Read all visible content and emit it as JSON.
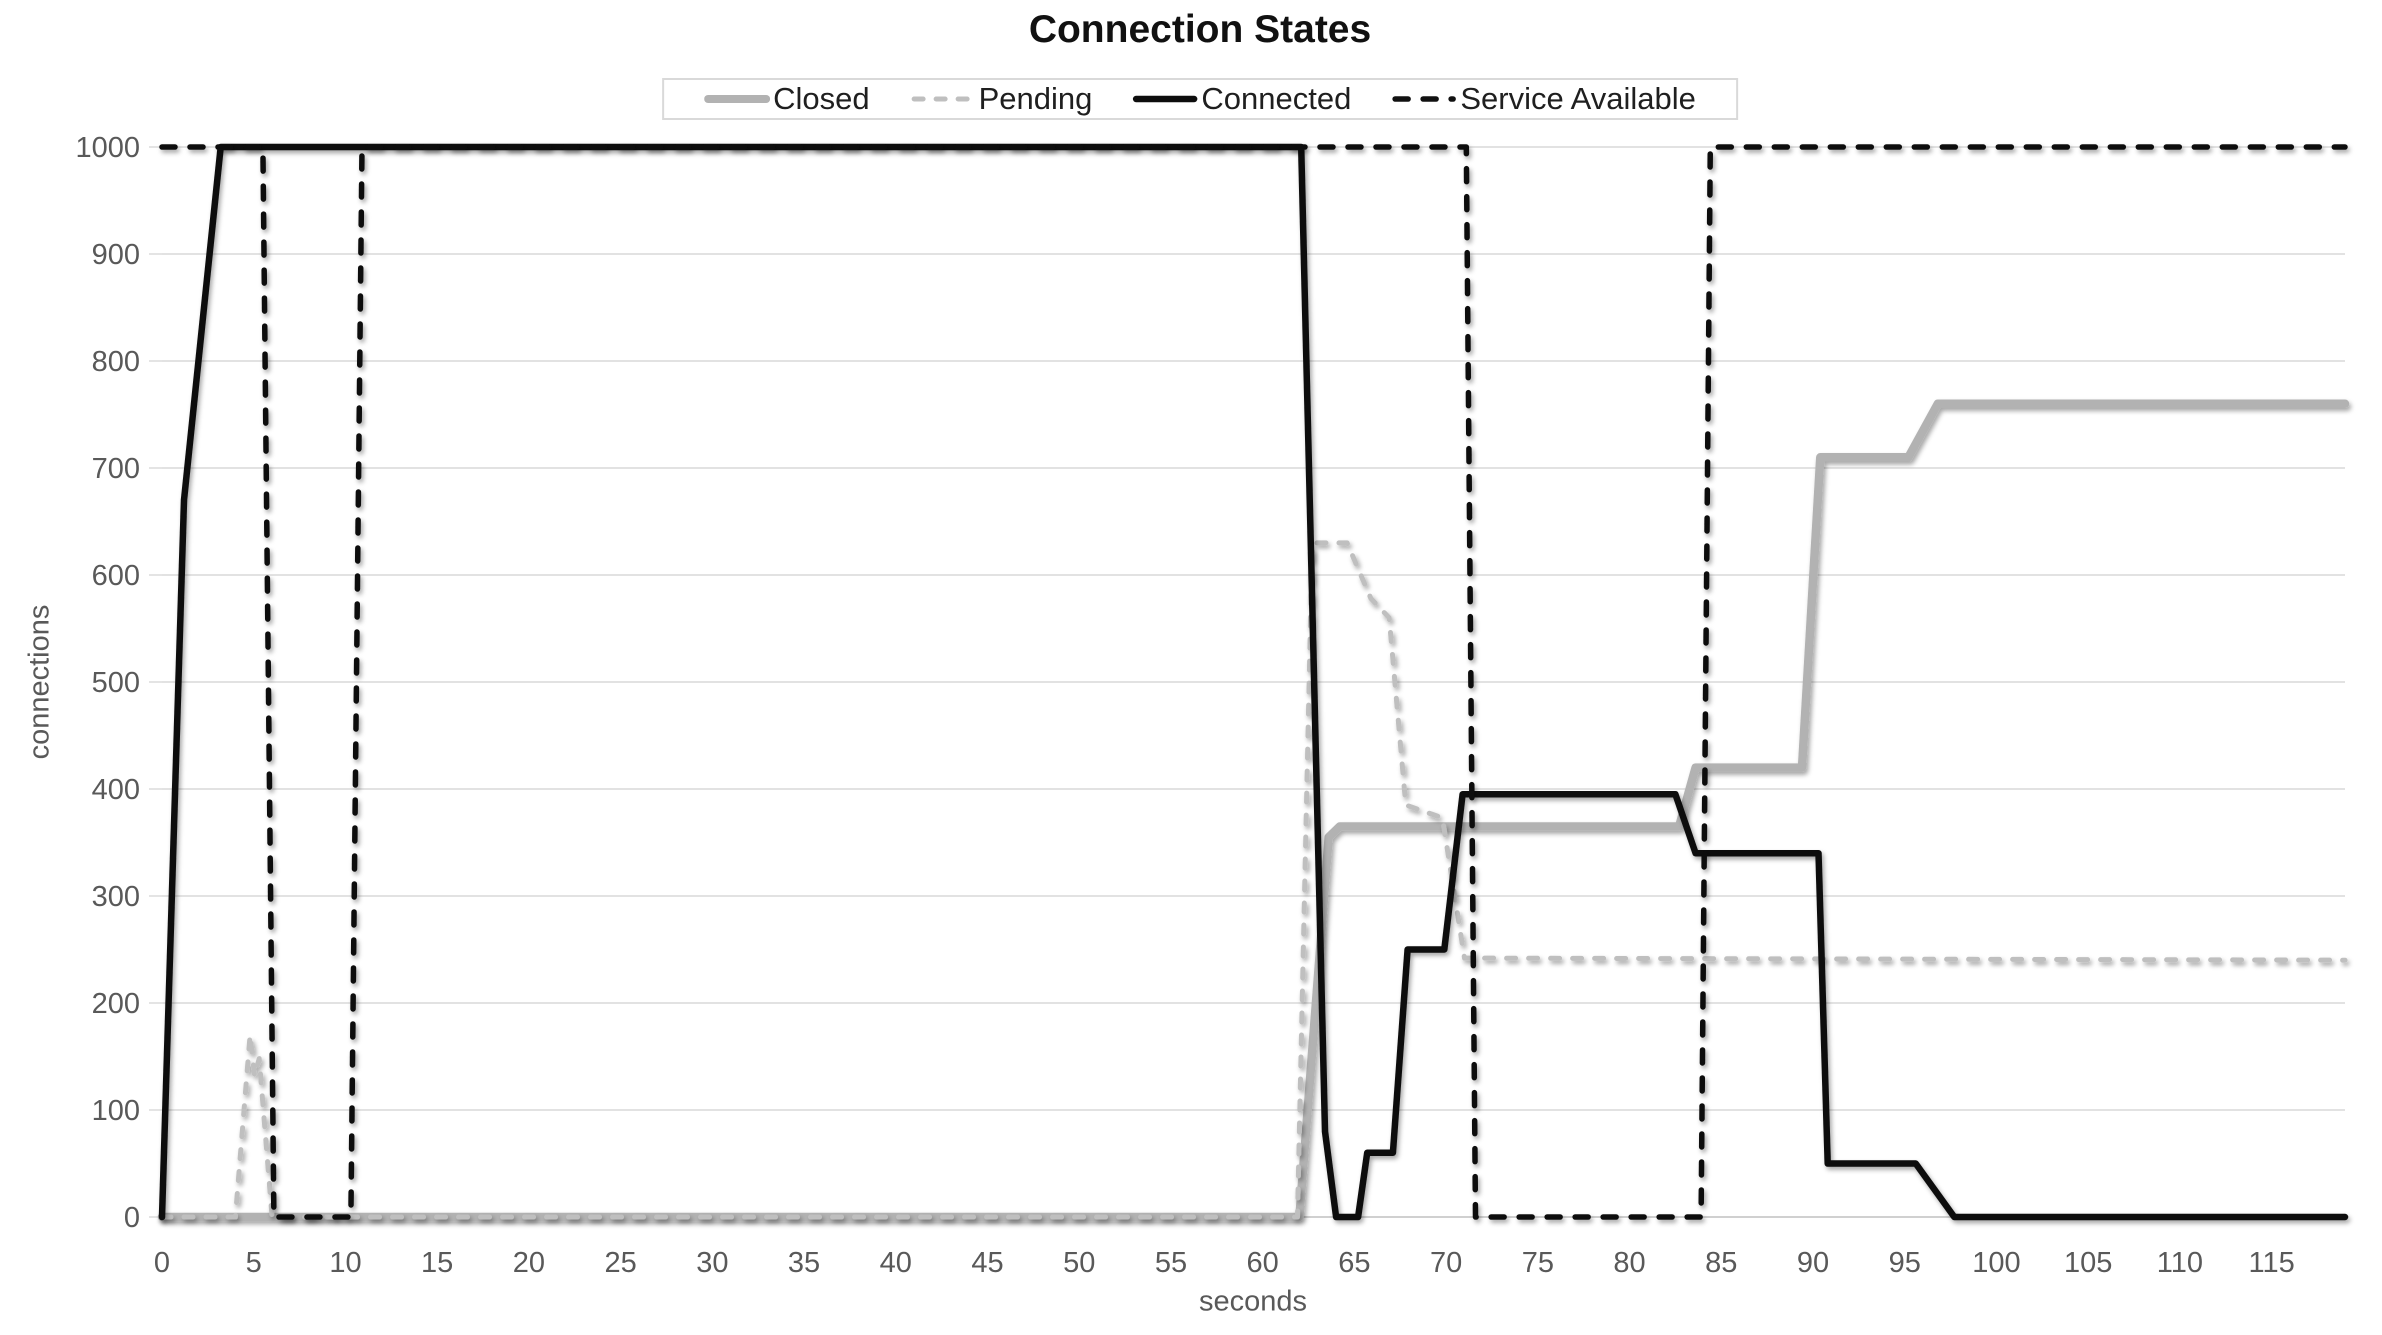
{
  "chart_data": {
    "type": "line",
    "title": "Connection States",
    "xlabel": "seconds",
    "ylabel": "connections",
    "xlim": [
      0,
      119
    ],
    "ylim": [
      0,
      1000
    ],
    "x_ticks": [
      0,
      5,
      10,
      15,
      20,
      25,
      30,
      35,
      40,
      45,
      50,
      55,
      60,
      65,
      70,
      75,
      80,
      85,
      90,
      95,
      100,
      105,
      110,
      115
    ],
    "y_ticks": [
      0,
      100,
      200,
      300,
      400,
      500,
      600,
      700,
      800,
      900,
      1000
    ],
    "grid": "horizontal",
    "legend_position": "top-center",
    "colors": {
      "grid": "#d9d9d9",
      "axis": "#c6c6c6",
      "tick_text": "#595959",
      "title_text": "#111111"
    },
    "series": [
      {
        "name": "Closed",
        "color": "#b2b2b2",
        "style": "solid",
        "width": 8.5,
        "dash": null,
        "points": [
          [
            0,
            0
          ],
          [
            62,
            0
          ],
          [
            63.6,
            355
          ],
          [
            64.2,
            365
          ],
          [
            82.7,
            365
          ],
          [
            83.6,
            420
          ],
          [
            89.4,
            420
          ],
          [
            90.4,
            710
          ],
          [
            95.2,
            710
          ],
          [
            96.8,
            760
          ],
          [
            119,
            760
          ]
        ]
      },
      {
        "name": "Pending",
        "color": "#bfbfbf",
        "style": "dashed",
        "width": 5,
        "dash": [
          9,
          13
        ],
        "points": [
          [
            0,
            0
          ],
          [
            4,
            0
          ],
          [
            4.8,
            170
          ],
          [
            5.05,
            132
          ],
          [
            5.3,
            148
          ],
          [
            6,
            0
          ],
          [
            61.9,
            0
          ],
          [
            62.7,
            630
          ],
          [
            64.6,
            630
          ],
          [
            65.9,
            578
          ],
          [
            66.9,
            560
          ],
          [
            67.8,
            385
          ],
          [
            69.8,
            373
          ],
          [
            71,
            242
          ],
          [
            119,
            240
          ]
        ]
      },
      {
        "name": "Connected",
        "color": "#0d0d0d",
        "style": "solid",
        "width": 6.5,
        "dash": null,
        "points": [
          [
            0,
            0
          ],
          [
            1.2,
            670
          ],
          [
            3.2,
            1000
          ],
          [
            62.1,
            1000
          ],
          [
            63.4,
            80
          ],
          [
            64,
            0
          ],
          [
            65.2,
            0
          ],
          [
            65.7,
            60
          ],
          [
            67.1,
            60
          ],
          [
            67.9,
            250
          ],
          [
            69.9,
            250
          ],
          [
            70.9,
            395
          ],
          [
            82.5,
            395
          ],
          [
            83.6,
            340
          ],
          [
            90.3,
            340
          ],
          [
            90.8,
            50
          ],
          [
            95.6,
            50
          ],
          [
            97.7,
            0
          ],
          [
            119,
            0
          ]
        ]
      },
      {
        "name": "Service Available",
        "color": "#111111",
        "style": "dashed",
        "width": 5.5,
        "dash": [
          13,
          15
        ],
        "points": [
          [
            0,
            1000
          ],
          [
            5.5,
            1000
          ],
          [
            6.1,
            0
          ],
          [
            10.3,
            0
          ],
          [
            10.9,
            1000
          ],
          [
            71.1,
            1000
          ],
          [
            71.6,
            0
          ],
          [
            83.9,
            0
          ],
          [
            84.4,
            1000
          ],
          [
            119,
            1000
          ]
        ]
      }
    ]
  }
}
